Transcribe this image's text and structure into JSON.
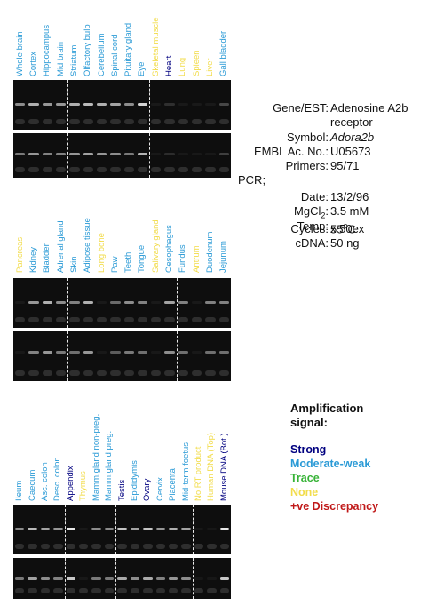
{
  "colors": {
    "strong": "#000080",
    "moderate_weak": "#2a9ad6",
    "trace": "#37b337",
    "none": "#f2dc4a",
    "discrepancy": "#c01818"
  },
  "panels": [
    {
      "lanes": [
        {
          "label": "Whole brain",
          "signal": "moderate_weak",
          "band": 0.55
        },
        {
          "label": "Cortex",
          "signal": "moderate_weak",
          "band": 0.7
        },
        {
          "label": "Hippocampus",
          "signal": "moderate_weak",
          "band": 0.6
        },
        {
          "label": "Mid brain",
          "signal": "moderate_weak",
          "band": 0.6
        },
        {
          "label": "Striatum",
          "signal": "moderate_weak",
          "band": 0.7
        },
        {
          "label": "Olfactory bulb",
          "signal": "moderate_weak",
          "band": 0.75
        },
        {
          "label": "Cerebellum",
          "signal": "moderate_weak",
          "band": 0.7
        },
        {
          "label": "Spinal cord",
          "signal": "moderate_weak",
          "band": 0.65
        },
        {
          "label": "Pituitary gland",
          "signal": "moderate_weak",
          "band": 0.55
        },
        {
          "label": "Eye",
          "signal": "moderate_weak",
          "band": 0.85
        },
        {
          "label": "Skeletal muscle",
          "signal": "none",
          "band": 0.05
        },
        {
          "label": "Heart",
          "signal": "strong",
          "band": 0.15
        },
        {
          "label": "Lung",
          "signal": "none",
          "band": 0.05
        },
        {
          "label": "Spleen",
          "signal": "none",
          "band": 0.05
        },
        {
          "label": "Liver",
          "signal": "none",
          "band": 0.05
        },
        {
          "label": "Gall bladder",
          "signal": "moderate_weak",
          "band": 0.25
        }
      ],
      "dividers": [
        4,
        10
      ]
    },
    {
      "lanes": [
        {
          "label": "Pancreas",
          "signal": "none",
          "band": 0.05
        },
        {
          "label": "Kidney",
          "signal": "moderate_weak",
          "band": 0.6
        },
        {
          "label": "Bladder",
          "signal": "moderate_weak",
          "band": 0.7
        },
        {
          "label": "Adrenal gland",
          "signal": "moderate_weak",
          "band": 0.55
        },
        {
          "label": "Skin",
          "signal": "moderate_weak",
          "band": 0.5
        },
        {
          "label": "Adipose tissue",
          "signal": "moderate_weak",
          "band": 0.7
        },
        {
          "label": "Long bone",
          "signal": "none",
          "band": 0.05
        },
        {
          "label": "Paw",
          "signal": "moderate_weak",
          "band": 0.4
        },
        {
          "label": "Teeth",
          "signal": "moderate_weak",
          "band": 0.55
        },
        {
          "label": "Tongue",
          "signal": "moderate_weak",
          "band": 0.5
        },
        {
          "label": "Salivary gland",
          "signal": "none",
          "band": 0.05
        },
        {
          "label": "Oesophagus",
          "signal": "moderate_weak",
          "band": 0.65
        },
        {
          "label": "Fundus",
          "signal": "moderate_weak",
          "band": 0.5
        },
        {
          "label": "Antrum",
          "signal": "none",
          "band": 0.05
        },
        {
          "label": "Duodenum",
          "signal": "moderate_weak",
          "band": 0.5
        },
        {
          "label": "Jejunum",
          "signal": "moderate_weak",
          "band": 0.5
        }
      ],
      "dividers": [
        4,
        8,
        12
      ]
    },
    {
      "lanes": [
        {
          "label": "Ileum",
          "signal": "moderate_weak",
          "band": 0.55
        },
        {
          "label": "Caecum",
          "signal": "moderate_weak",
          "band": 0.75
        },
        {
          "label": "Asc. colon",
          "signal": "moderate_weak",
          "band": 0.65
        },
        {
          "label": "Desc. colon",
          "signal": "moderate_weak",
          "band": 0.6
        },
        {
          "label": "Appendix",
          "signal": "strong",
          "band": 0.95
        },
        {
          "label": "Thymus",
          "signal": "none",
          "band": 0.05
        },
        {
          "label": "Mamm.gland non-preg.",
          "signal": "moderate_weak",
          "band": 0.55
        },
        {
          "label": "Mamm.gland preg.",
          "signal": "moderate_weak",
          "band": 0.55
        },
        {
          "label": "Testis",
          "signal": "strong",
          "band": 0.8
        },
        {
          "label": "Epididymis",
          "signal": "moderate_weak",
          "band": 0.65
        },
        {
          "label": "Ovary",
          "signal": "strong",
          "band": 0.8
        },
        {
          "label": "Cervix",
          "signal": "moderate_weak",
          "band": 0.6
        },
        {
          "label": "Placenta",
          "signal": "moderate_weak",
          "band": 0.7
        },
        {
          "label": "Mid-term foetus",
          "signal": "moderate_weak",
          "band": 0.65
        },
        {
          "label": "No RT product",
          "signal": "none",
          "band": 0.0
        },
        {
          "label": "Human DNA (Top)",
          "signal": "none",
          "band": 0.0
        },
        {
          "label": "Mouse DNA (Bot.)",
          "signal": "strong",
          "band": 0.95
        }
      ],
      "dividers": [
        4,
        8,
        14
      ]
    }
  ],
  "info": {
    "gene_label": "Gene/EST:",
    "gene_value_1": "Adenosine A2b",
    "gene_value_2": "receptor",
    "symbol_label": "Symbol:",
    "symbol_value": "Adora2b",
    "embl_label": "EMBL Ac. No.:",
    "embl_value": "U05673",
    "primers_label": "Primers:",
    "primers_value": "95/71",
    "pcr_label": "PCR;",
    "date_label": "Date:",
    "date_value": "13/2/96",
    "mgcl_label_main": "MgCl",
    "mgcl_label_sub": "2",
    "mgcl_label_colon": ":",
    "mgcl_value": "3.5 mM",
    "temp_label": "Temp:",
    "temp_value_num": "55",
    "temp_value_sup": "o",
    "temp_value_unit": "C",
    "cycles_label": "Cycles:",
    "cycles_value": "x 50ex",
    "cdna_label": "cDNA:",
    "cdna_value": "50 ng"
  },
  "legend": {
    "title_1": "Amplification",
    "title_2": "signal:",
    "strong": "Strong",
    "moderate_weak": "Moderate-weak",
    "trace": "Trace",
    "none": "None",
    "discrepancy": "+ve Discrepancy"
  }
}
